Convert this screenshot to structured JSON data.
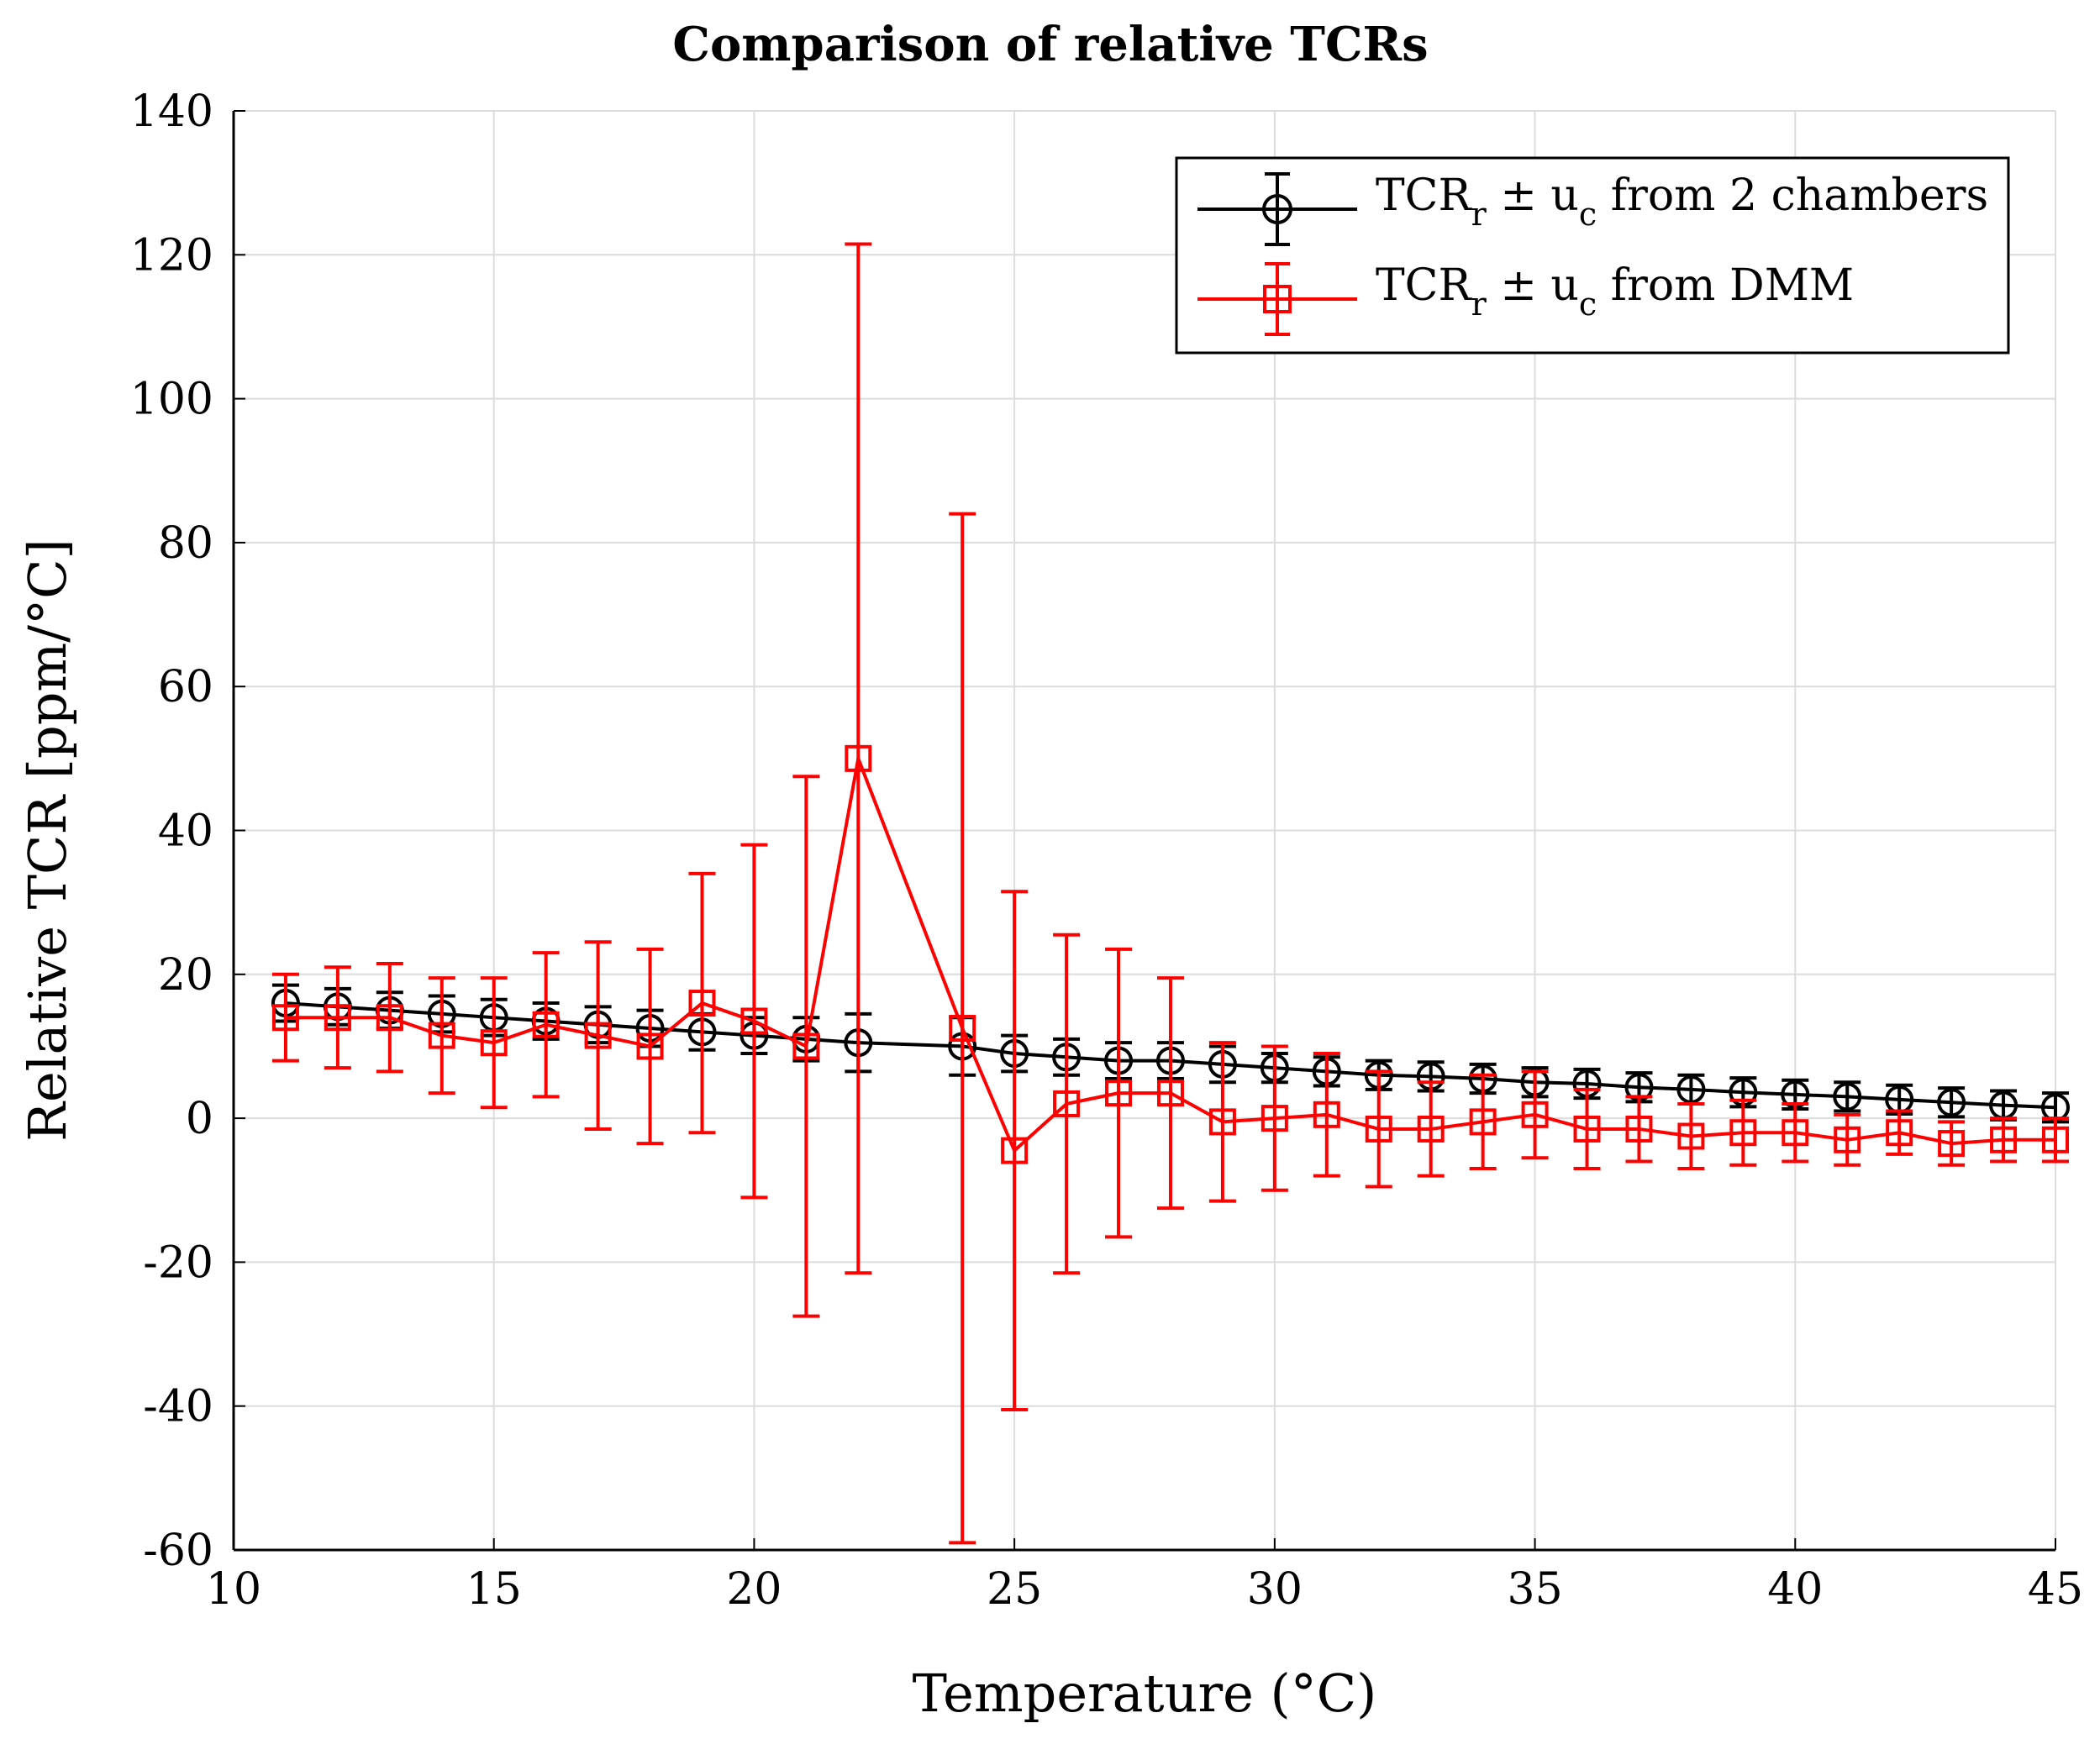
{
  "chart_data": {
    "type": "line",
    "title": "Comparison of relative TCRs",
    "xlabel": "Temperature (°C)",
    "ylabel": "Relative TCR [ppm/°C]",
    "xlim": [
      10,
      45
    ],
    "ylim": [
      -60,
      140
    ],
    "xticks": [
      10,
      15,
      20,
      25,
      30,
      35,
      40,
      45
    ],
    "yticks": [
      -60,
      -40,
      -20,
      0,
      20,
      40,
      60,
      80,
      100,
      120,
      140
    ],
    "grid": true,
    "legend_position": "top-right",
    "series": [
      {
        "name": "TCRᵣ ± uᶜ from 2 chambers",
        "legend_base": "TCR",
        "legend_sub1": "r",
        "legend_mid": " ± u",
        "legend_sub2": "c",
        "legend_tail": " from 2 chambers",
        "color": "#000000",
        "marker": "circle",
        "x": [
          11,
          12,
          13,
          14,
          15,
          16,
          17,
          18,
          19,
          20,
          21,
          22,
          24,
          25,
          26,
          27,
          28,
          29,
          30,
          31,
          32,
          33,
          34,
          35,
          36,
          37,
          38,
          39,
          40,
          41,
          42,
          43,
          44,
          45
        ],
        "y": [
          16,
          15.5,
          15,
          14.5,
          14,
          13.5,
          13,
          12.5,
          12,
          11.5,
          11,
          10.5,
          10,
          9,
          8.5,
          8,
          8,
          7.5,
          7,
          6.5,
          6,
          5.8,
          5.5,
          5,
          4.8,
          4.3,
          4,
          3.6,
          3.3,
          3,
          2.6,
          2.2,
          1.8,
          1.5
        ],
        "err": [
          2.5,
          2.5,
          2.5,
          2.5,
          2.5,
          2.5,
          2.5,
          2.5,
          2.5,
          2.5,
          3,
          4,
          4,
          2.5,
          2.5,
          2.5,
          2.5,
          2.5,
          2,
          2,
          2,
          2,
          2,
          2,
          2,
          2,
          2,
          2,
          2,
          2,
          2,
          2,
          2,
          2
        ]
      },
      {
        "name": "TCRᵣ ± uᶜ from DMM",
        "legend_base": "TCR",
        "legend_sub1": "r",
        "legend_mid": " ± u",
        "legend_sub2": "c",
        "legend_tail": " from DMM",
        "color": "#ff0000",
        "marker": "square",
        "x": [
          11,
          12,
          13,
          14,
          15,
          16,
          17,
          18,
          19,
          20,
          21,
          22,
          24,
          25,
          26,
          27,
          28,
          29,
          30,
          31,
          32,
          33,
          34,
          35,
          36,
          37,
          38,
          39,
          40,
          41,
          42,
          43,
          44,
          45
        ],
        "y": [
          14,
          14,
          14,
          11.5,
          10.5,
          13,
          11.5,
          10,
          16,
          13.5,
          10,
          50,
          12.5,
          -4.5,
          2,
          3.5,
          3.5,
          -0.5,
          0,
          0.5,
          -1.5,
          -1.5,
          -0.5,
          0.5,
          -1.5,
          -1.5,
          -2.5,
          -2,
          -2,
          -3,
          -2,
          -3.5,
          -3,
          -3
        ],
        "err": [
          6,
          7,
          7.5,
          8,
          9,
          10,
          13,
          13.5,
          18,
          24.5,
          37.5,
          71.5,
          71.5,
          36,
          23.5,
          20,
          16,
          11,
          10,
          8.5,
          8,
          6.5,
          6.5,
          6,
          5.5,
          4.5,
          4.5,
          4.5,
          4,
          3.5,
          3,
          3,
          3,
          3
        ]
      }
    ]
  }
}
